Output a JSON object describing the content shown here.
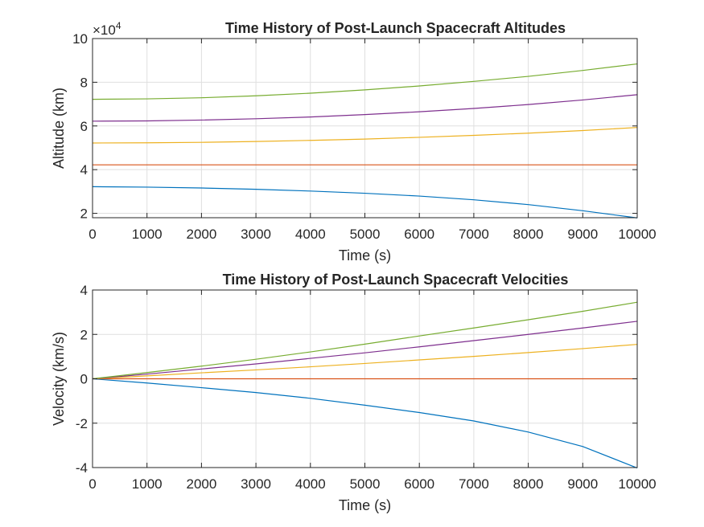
{
  "chart_data": [
    {
      "type": "line",
      "title": "Time History of Post-Launch Spacecraft Altitudes",
      "xlabel": "Time (s)",
      "ylabel": "Altitude (km)",
      "exponent_label": "×10",
      "exponent_power": "4",
      "xlim": [
        0,
        10000
      ],
      "ylim": [
        1.8,
        10
      ],
      "xticks": [
        0,
        1000,
        2000,
        3000,
        4000,
        5000,
        6000,
        7000,
        8000,
        9000,
        10000
      ],
      "yticks": [
        2,
        4,
        6,
        8,
        10
      ],
      "grid": true,
      "x": [
        0,
        1000,
        2000,
        3000,
        4000,
        5000,
        6000,
        7000,
        8000,
        9000,
        10000
      ],
      "series": [
        {
          "color": "#0072BD",
          "values": [
            3.22,
            3.2,
            3.16,
            3.1,
            3.02,
            2.92,
            2.79,
            2.62,
            2.4,
            2.12,
            1.79
          ]
        },
        {
          "color": "#D95319",
          "values": [
            4.22,
            4.22,
            4.22,
            4.22,
            4.22,
            4.22,
            4.22,
            4.22,
            4.22,
            4.22,
            4.22
          ]
        },
        {
          "color": "#EDB120",
          "values": [
            5.22,
            5.23,
            5.25,
            5.29,
            5.34,
            5.4,
            5.48,
            5.57,
            5.67,
            5.79,
            5.93
          ]
        },
        {
          "color": "#7E2F8E",
          "values": [
            6.22,
            6.23,
            6.27,
            6.33,
            6.41,
            6.52,
            6.65,
            6.8,
            6.98,
            7.19,
            7.43
          ]
        },
        {
          "color": "#77AC30",
          "values": [
            7.22,
            7.24,
            7.29,
            7.38,
            7.5,
            7.65,
            7.83,
            8.04,
            8.27,
            8.54,
            8.84
          ]
        }
      ]
    },
    {
      "type": "line",
      "title": "Time History of Post-Launch Spacecraft Velocities",
      "xlabel": "Time (s)",
      "ylabel": "Velocity (km/s)",
      "xlim": [
        0,
        10000
      ],
      "ylim": [
        -4,
        4
      ],
      "xticks": [
        0,
        1000,
        2000,
        3000,
        4000,
        5000,
        6000,
        7000,
        8000,
        9000,
        10000
      ],
      "yticks": [
        -4,
        -2,
        0,
        2,
        4
      ],
      "grid": true,
      "x": [
        0,
        1000,
        2000,
        3000,
        4000,
        5000,
        6000,
        7000,
        8000,
        9000,
        10000
      ],
      "series": [
        {
          "color": "#0072BD",
          "values": [
            0,
            -0.19,
            -0.4,
            -0.62,
            -0.88,
            -1.19,
            -1.52,
            -1.9,
            -2.4,
            -3.05,
            -4.02
          ]
        },
        {
          "color": "#D95319",
          "values": [
            0,
            0,
            0,
            0,
            0,
            0,
            0,
            0,
            0,
            0,
            0
          ]
        },
        {
          "color": "#EDB120",
          "values": [
            0,
            0.13,
            0.27,
            0.4,
            0.54,
            0.69,
            0.85,
            1.01,
            1.18,
            1.36,
            1.55
          ]
        },
        {
          "color": "#7E2F8E",
          "values": [
            0,
            0.21,
            0.44,
            0.67,
            0.92,
            1.17,
            1.44,
            1.72,
            2.0,
            2.29,
            2.59
          ]
        },
        {
          "color": "#77AC30",
          "values": [
            0,
            0.28,
            0.57,
            0.88,
            1.21,
            1.56,
            1.93,
            2.29,
            2.66,
            3.04,
            3.45
          ]
        }
      ]
    }
  ]
}
